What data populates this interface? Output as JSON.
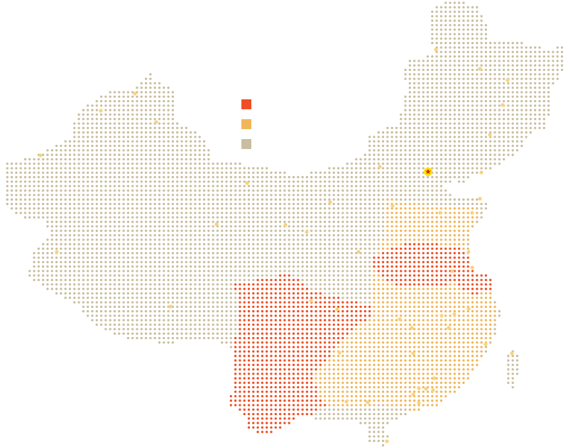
{
  "map": {
    "colors": {
      "high": "#f04e23",
      "medium": "#f0b65a",
      "base": "#c8bea0",
      "city": "#fcd37a",
      "capital_marker": "#ffe400",
      "capital_star": "#e2231a"
    },
    "legend": [
      {
        "key": "high",
        "label": ""
      },
      {
        "key": "medium",
        "label": ""
      },
      {
        "key": "base",
        "label": ""
      }
    ],
    "capital": {
      "icon": "star-icon"
    }
  }
}
